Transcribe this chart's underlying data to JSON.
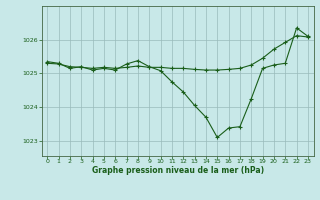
{
  "title": "Graphe pression niveau de la mer (hPa)",
  "background_color": "#c8e8e8",
  "plot_bg_color": "#c8e8e8",
  "grid_color": "#99bbbb",
  "line_color": "#1a5e1a",
  "marker_color": "#1a5e1a",
  "ylim": [
    1022.55,
    1027.0
  ],
  "yticks": [
    1023,
    1024,
    1025,
    1026
  ],
  "xticks": [
    0,
    1,
    2,
    3,
    4,
    5,
    6,
    7,
    8,
    9,
    10,
    11,
    12,
    13,
    14,
    15,
    16,
    17,
    18,
    19,
    20,
    21,
    22,
    23
  ],
  "series1_x": [
    0,
    1,
    2,
    3,
    4,
    5,
    6,
    7,
    8,
    9,
    10,
    11,
    12,
    13,
    14,
    15,
    16,
    17,
    18,
    19,
    20,
    21,
    22,
    23
  ],
  "series1_y": [
    1025.35,
    1025.3,
    1025.15,
    1025.2,
    1025.1,
    1025.15,
    1025.1,
    1025.28,
    1025.38,
    1025.2,
    1025.08,
    1024.75,
    1024.45,
    1024.05,
    1023.7,
    1023.1,
    1023.38,
    1023.42,
    1024.25,
    1025.15,
    1025.25,
    1025.3,
    1026.35,
    1026.1
  ],
  "series2_x": [
    0,
    1,
    2,
    3,
    4,
    5,
    6,
    7,
    8,
    9,
    10,
    11,
    12,
    13,
    14,
    15,
    16,
    17,
    18,
    19,
    20,
    21,
    22,
    23
  ],
  "series2_y": [
    1025.3,
    1025.28,
    1025.2,
    1025.18,
    1025.15,
    1025.18,
    1025.15,
    1025.18,
    1025.22,
    1025.18,
    1025.18,
    1025.15,
    1025.15,
    1025.12,
    1025.1,
    1025.1,
    1025.12,
    1025.15,
    1025.25,
    1025.45,
    1025.72,
    1025.92,
    1026.12,
    1026.08
  ]
}
